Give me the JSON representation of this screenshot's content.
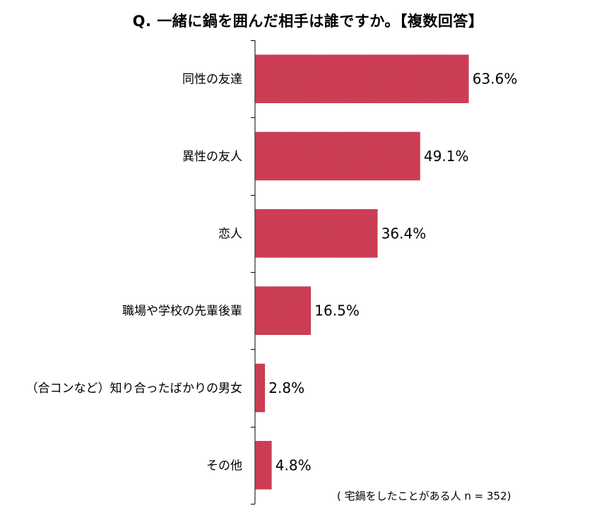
{
  "chart_data": {
    "type": "bar",
    "orientation": "horizontal",
    "title": "Q. 一緒に鍋を囲んだ相手は誰ですか。【複数回答】",
    "categories": [
      "同性の友達",
      "異性の友人",
      "恋人",
      "職場や学校の先輩後輩",
      "（合コンなど）知り合ったばかりの男女",
      "その他"
    ],
    "values": [
      63.6,
      49.1,
      36.4,
      16.5,
      2.8,
      4.8
    ],
    "value_labels": [
      "63.6%",
      "49.1%",
      "36.4%",
      "16.5%",
      "2.8%",
      "4.8%"
    ],
    "unit": "%",
    "xlim": [
      0,
      100
    ],
    "grid": false,
    "legend": "none",
    "bar_color": "#d4445b",
    "note": "( 宅鍋をしたことがある人 n = 352)"
  }
}
